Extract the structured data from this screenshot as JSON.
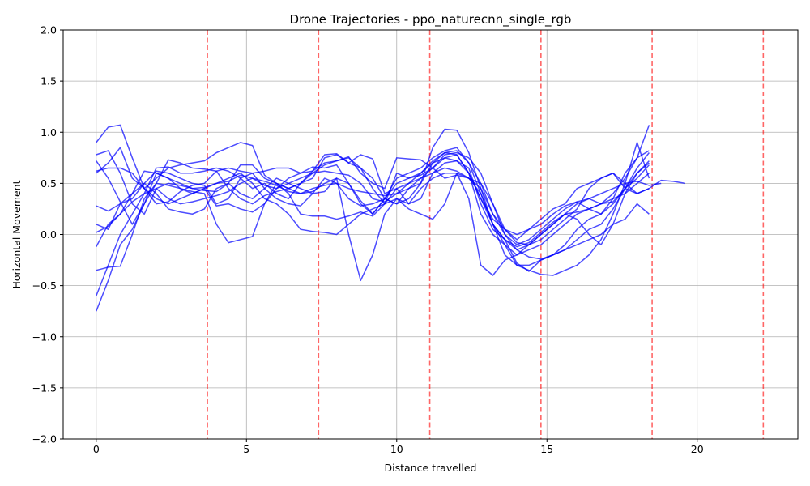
{
  "chart_data": {
    "type": "line",
    "title": "Drone Trajectories - ppo_naturecnn_single_rgb",
    "xlabel": "Distance travelled",
    "ylabel": "Horizontal Movement",
    "xlim": [
      -1.1,
      23.35
    ],
    "ylim": [
      -2.0,
      2.0
    ],
    "xticks": [
      0,
      5,
      10,
      15,
      20
    ],
    "xtick_labels": [
      "0",
      "5",
      "10",
      "15",
      "20"
    ],
    "yticks": [
      -2.0,
      -1.5,
      -1.0,
      -0.5,
      0.0,
      0.5,
      1.0,
      1.5,
      2.0
    ],
    "ytick_labels": [
      "−2.0",
      "−1.5",
      "−1.0",
      "−0.5",
      "0.0",
      "0.5",
      "1.0",
      "1.5",
      "2.0"
    ],
    "grid": true,
    "line_color": "#0000ff",
    "vline_color": "#ff0000",
    "vlines": [
      3.7,
      7.4,
      11.1,
      14.8,
      18.5,
      22.2
    ],
    "series": [
      {
        "x": [
          0,
          0.4,
          0.8,
          1.2,
          1.6,
          2.0,
          2.4,
          2.8,
          3.2,
          3.6,
          4.0,
          4.4,
          4.8,
          5.2,
          5.6,
          6.0,
          6.4,
          6.8,
          7.2,
          7.6,
          8.0,
          8.4,
          8.8,
          9.2,
          9.6,
          10.0,
          10.4,
          10.8,
          11.2,
          11.6,
          12.0,
          12.4,
          12.8,
          13.2,
          13.6,
          14.0,
          14.4,
          14.8,
          15.2,
          15.6,
          16.0,
          16.4,
          16.8,
          17.2,
          17.6,
          18.0,
          18.4
        ],
        "y": [
          0.9,
          1.05,
          1.07,
          0.75,
          0.45,
          0.55,
          0.65,
          0.68,
          0.7,
          0.72,
          0.8,
          0.85,
          0.9,
          0.87,
          0.58,
          0.5,
          0.45,
          0.5,
          0.55,
          0.75,
          0.78,
          0.7,
          0.65,
          0.55,
          0.35,
          0.3,
          0.45,
          0.5,
          0.85,
          1.03,
          1.02,
          0.8,
          0.45,
          0.1,
          -0.05,
          -0.15,
          -0.22,
          -0.24,
          -0.2,
          -0.1,
          0.05,
          0.15,
          0.2,
          0.35,
          0.6,
          0.75,
          0.82
        ]
      },
      {
        "x": [
          0,
          0.4,
          0.8,
          1.2,
          1.6,
          2.0,
          2.4,
          2.8,
          3.2,
          3.6,
          4.0,
          4.4,
          4.8,
          5.2,
          5.6,
          6.0,
          6.4,
          6.8,
          7.2,
          7.6,
          8.0,
          8.4,
          8.8,
          9.2,
          9.6,
          10.0,
          10.4,
          10.8,
          11.2,
          11.6,
          12.0,
          12.4,
          12.8,
          13.2,
          13.6,
          14.0,
          14.4,
          14.8,
          15.2,
          15.6,
          16.0,
          16.4,
          16.8,
          17.2,
          17.6,
          18.0,
          18.4
        ],
        "y": [
          -0.75,
          -0.45,
          -0.1,
          0.05,
          0.3,
          0.6,
          0.55,
          0.45,
          0.4,
          0.45,
          0.28,
          0.3,
          0.25,
          0.22,
          0.3,
          0.45,
          0.55,
          0.6,
          0.66,
          0.65,
          0.68,
          0.5,
          0.33,
          0.2,
          0.35,
          0.5,
          0.55,
          0.6,
          0.7,
          0.8,
          0.78,
          0.6,
          0.2,
          0.0,
          -0.1,
          -0.3,
          -0.3,
          -0.25,
          -0.2,
          -0.15,
          -0.05,
          0.05,
          0.1,
          0.25,
          0.45,
          0.65,
          0.8
        ]
      },
      {
        "x": [
          0,
          0.4,
          0.8,
          1.2,
          1.6,
          2.0,
          2.4,
          2.8,
          3.2,
          3.6,
          4.0,
          4.4,
          4.8,
          5.2,
          5.6,
          6.0,
          6.4,
          6.8,
          7.2,
          7.6,
          8.0,
          8.4,
          8.8,
          9.2,
          9.6,
          10.0,
          10.4,
          10.8,
          11.2,
          11.6,
          12.0,
          12.4,
          12.8,
          13.2,
          13.6,
          14.0,
          14.4,
          14.8,
          15.2,
          15.6,
          16.0,
          16.4,
          16.8,
          17.2,
          17.6,
          18.0,
          18.4
        ],
        "y": [
          0.6,
          0.7,
          0.85,
          0.55,
          0.45,
          0.35,
          0.3,
          0.35,
          0.4,
          0.45,
          0.5,
          0.55,
          0.6,
          0.5,
          0.35,
          0.3,
          0.2,
          0.05,
          0.03,
          0.02,
          0.0,
          0.1,
          0.2,
          0.25,
          0.3,
          0.35,
          0.25,
          0.2,
          0.15,
          0.3,
          0.6,
          0.55,
          0.4,
          0.1,
          -0.2,
          -0.3,
          -0.35,
          -0.39,
          -0.4,
          -0.35,
          -0.3,
          -0.2,
          -0.05,
          0.2,
          0.5,
          0.9,
          0.55
        ]
      },
      {
        "x": [
          0,
          0.4,
          0.8,
          1.2,
          1.6,
          2.0,
          2.4,
          2.8,
          3.2,
          3.6,
          4.0,
          4.4,
          4.8,
          5.2,
          5.6,
          6.0,
          6.4,
          6.8,
          7.2,
          7.6,
          8.0,
          8.4,
          8.8,
          9.2,
          9.6,
          10.0,
          10.4,
          10.8,
          11.2,
          11.6,
          12.0,
          12.4,
          12.8,
          13.2,
          13.6,
          14.0,
          14.4,
          14.8,
          15.2,
          15.6,
          16.0,
          16.4,
          16.8,
          17.2,
          17.6,
          18.0,
          18.4,
          18.8,
          19.2,
          19.6
        ],
        "y": [
          -0.35,
          -0.32,
          -0.31,
          0.0,
          0.35,
          0.5,
          0.48,
          0.45,
          0.42,
          0.4,
          0.1,
          -0.08,
          -0.05,
          -0.02,
          0.3,
          0.5,
          0.45,
          0.4,
          0.42,
          0.5,
          0.55,
          0.0,
          -0.45,
          -0.2,
          0.2,
          0.35,
          0.3,
          0.45,
          0.55,
          0.6,
          0.6,
          0.35,
          -0.3,
          -0.4,
          -0.25,
          -0.2,
          -0.1,
          0.0,
          0.1,
          0.2,
          0.3,
          0.35,
          0.4,
          0.45,
          0.5,
          0.4,
          0.45,
          0.53,
          0.52,
          0.5
        ]
      },
      {
        "x": [
          0,
          0.4,
          0.8,
          1.2,
          1.6,
          2.0,
          2.4,
          2.8,
          3.2,
          3.6,
          4.0,
          4.4,
          4.8,
          5.2,
          5.6,
          6.0,
          6.4,
          6.8,
          7.2,
          7.6,
          8.0,
          8.4,
          8.8,
          9.2,
          9.6,
          10.0,
          10.4,
          10.8,
          11.2,
          11.6,
          12.0,
          12.4,
          12.8,
          13.2,
          13.6,
          14.0,
          14.4,
          14.8,
          15.2,
          15.6,
          16.0,
          16.4,
          16.8,
          17.2,
          17.6,
          18.0,
          18.4
        ],
        "y": [
          0.28,
          0.23,
          0.3,
          0.35,
          0.5,
          0.62,
          0.6,
          0.55,
          0.5,
          0.48,
          0.3,
          0.35,
          0.55,
          0.6,
          0.45,
          0.35,
          0.3,
          0.28,
          0.4,
          0.55,
          0.5,
          0.35,
          0.28,
          0.3,
          0.35,
          0.3,
          0.35,
          0.5,
          0.7,
          0.75,
          0.72,
          0.6,
          0.35,
          0.15,
          0.05,
          0.0,
          0.05,
          0.15,
          0.25,
          0.3,
          0.45,
          0.5,
          0.55,
          0.6,
          0.45,
          0.4,
          0.45
        ]
      },
      {
        "x": [
          0,
          0.4,
          0.8,
          1.2,
          1.6,
          2.0,
          2.4,
          2.8,
          3.2,
          3.6,
          4.0,
          4.4,
          4.8,
          5.2,
          5.6,
          6.0,
          6.4,
          6.8,
          7.2,
          7.6,
          8.0,
          8.4,
          8.8,
          9.2,
          9.6,
          10.0,
          10.4,
          10.8,
          11.2,
          11.6,
          12.0,
          12.4,
          12.8,
          13.2,
          13.6,
          14.0,
          14.4,
          14.8,
          15.2,
          15.6,
          16.0,
          16.4,
          16.8,
          17.2,
          17.6,
          18.0,
          18.4
        ],
        "y": [
          0.1,
          0.05,
          0.3,
          0.4,
          0.5,
          0.4,
          0.25,
          0.22,
          0.2,
          0.25,
          0.45,
          0.5,
          0.4,
          0.35,
          0.45,
          0.55,
          0.5,
          0.45,
          0.4,
          0.42,
          0.55,
          0.5,
          0.3,
          0.2,
          0.35,
          0.55,
          0.6,
          0.65,
          0.75,
          0.82,
          0.85,
          0.7,
          0.4,
          0.1,
          -0.1,
          -0.2,
          -0.15,
          -0.1,
          0.0,
          0.1,
          0.2,
          0.25,
          0.3,
          0.35,
          0.4,
          0.5,
          0.6
        ]
      },
      {
        "x": [
          0,
          0.4,
          0.8,
          1.2,
          1.6,
          2.0,
          2.4,
          2.8,
          3.2,
          3.6,
          4.0,
          4.4,
          4.8,
          5.2,
          5.6,
          6.0,
          6.4,
          6.8,
          7.2,
          7.6,
          8.0,
          8.4,
          8.8,
          9.2,
          9.6,
          10.0,
          10.4,
          10.8,
          11.2,
          11.6,
          12.0,
          12.4,
          12.8,
          13.2,
          13.6,
          14.0,
          14.4,
          14.8,
          15.2,
          15.6,
          16.0,
          16.4,
          16.8,
          17.2,
          17.6,
          18.0,
          18.4
        ],
        "y": [
          -0.6,
          -0.3,
          0.0,
          0.2,
          0.4,
          0.65,
          0.66,
          0.6,
          0.6,
          0.62,
          0.65,
          0.62,
          0.55,
          0.45,
          0.5,
          0.4,
          0.35,
          0.5,
          0.6,
          0.68,
          0.72,
          0.75,
          0.65,
          0.45,
          0.3,
          0.6,
          0.55,
          0.58,
          0.65,
          0.78,
          0.8,
          0.75,
          0.6,
          0.3,
          0.0,
          -0.15,
          -0.1,
          0.0,
          0.1,
          0.2,
          0.15,
          0.0,
          -0.1,
          0.1,
          0.4,
          0.6,
          0.7
        ]
      },
      {
        "x": [
          0,
          0.4,
          0.8,
          1.2,
          1.6,
          2.0,
          2.4,
          2.8,
          3.2,
          3.6,
          4.0,
          4.4,
          4.8,
          5.2,
          5.6,
          6.0,
          6.4,
          6.8,
          7.2,
          7.6,
          8.0,
          8.4,
          8.8,
          9.2,
          9.6,
          10.0,
          10.4,
          10.8,
          11.2,
          11.6,
          12.0,
          12.4,
          12.8,
          13.2,
          13.6,
          14.0,
          14.4,
          14.8,
          15.2,
          15.6,
          16.0,
          16.4,
          16.8,
          17.2,
          17.6,
          18.0,
          18.4
        ],
        "y": [
          0.78,
          0.82,
          0.6,
          0.3,
          0.2,
          0.45,
          0.5,
          0.48,
          0.45,
          0.43,
          0.42,
          0.5,
          0.68,
          0.68,
          0.55,
          0.5,
          0.4,
          0.2,
          0.18,
          0.18,
          0.15,
          0.18,
          0.22,
          0.18,
          0.3,
          0.45,
          0.5,
          0.55,
          0.6,
          0.7,
          0.72,
          0.65,
          0.3,
          0.05,
          -0.05,
          -0.12,
          -0.08,
          0.02,
          0.12,
          0.2,
          0.22,
          0.25,
          0.3,
          0.4,
          0.55,
          0.75,
          1.07
        ]
      },
      {
        "x": [
          0,
          0.4,
          0.8,
          1.2,
          1.6,
          2.0,
          2.4,
          2.8,
          3.2,
          3.6,
          4.0,
          4.4,
          4.8,
          5.2,
          5.6,
          6.0,
          6.4,
          6.8,
          7.2,
          7.6,
          8.0,
          8.4,
          8.8,
          9.2,
          9.6,
          10.0,
          10.4,
          10.8,
          11.2,
          11.6,
          12.0,
          12.4,
          12.8,
          13.2,
          13.6,
          14.0,
          14.4,
          14.8,
          15.2,
          15.6,
          16.0,
          16.4,
          16.8,
          17.2,
          17.6,
          18.0,
          18.4
        ],
        "y": [
          -0.12,
          0.1,
          0.2,
          0.4,
          0.62,
          0.6,
          0.55,
          0.5,
          0.45,
          0.46,
          0.5,
          0.52,
          0.58,
          0.55,
          0.48,
          0.45,
          0.5,
          0.55,
          0.6,
          0.62,
          0.6,
          0.58,
          0.5,
          0.35,
          0.32,
          0.4,
          0.45,
          0.55,
          0.65,
          0.75,
          0.78,
          0.6,
          0.35,
          0.1,
          -0.05,
          -0.28,
          -0.36,
          -0.25,
          -0.2,
          -0.15,
          -0.1,
          -0.05,
          0.0,
          0.1,
          0.15,
          0.3,
          0.2
        ]
      },
      {
        "x": [
          0,
          0.4,
          0.8,
          1.2,
          1.6,
          2.0,
          2.4,
          2.8,
          3.2,
          3.6,
          4.0,
          4.4,
          4.8,
          5.2,
          5.6,
          6.0,
          6.4,
          6.8,
          7.2,
          7.6,
          8.0,
          8.4,
          8.8,
          9.2,
          9.6,
          10.0,
          10.4,
          10.8,
          11.2,
          11.6,
          12.0,
          12.4,
          12.8,
          13.2,
          13.6,
          14.0,
          14.4,
          14.8,
          15.2,
          15.6,
          16.0,
          16.4,
          16.8,
          17.2,
          17.6,
          18.0,
          18.4,
          18.8
        ],
        "y": [
          0.72,
          0.55,
          0.32,
          0.1,
          0.3,
          0.5,
          0.73,
          0.7,
          0.65,
          0.64,
          0.62,
          0.45,
          0.35,
          0.3,
          0.38,
          0.42,
          0.45,
          0.5,
          0.62,
          0.7,
          0.72,
          0.76,
          0.6,
          0.5,
          0.45,
          0.75,
          0.74,
          0.73,
          0.65,
          0.55,
          0.58,
          0.55,
          0.45,
          0.2,
          0.05,
          -0.08,
          -0.1,
          -0.05,
          0.05,
          0.15,
          0.25,
          0.45,
          0.55,
          0.6,
          0.5,
          0.52,
          0.48,
          0.5
        ]
      },
      {
        "x": [
          0,
          0.4,
          0.8,
          1.2,
          1.6,
          2.0,
          2.4,
          2.8,
          3.2,
          3.6,
          4.0,
          4.4,
          4.8,
          5.2,
          5.6,
          6.0,
          6.4,
          6.8,
          7.2,
          7.6,
          8.0,
          8.4,
          8.8,
          9.2,
          9.6,
          10.0,
          10.4,
          10.8,
          11.2,
          11.6,
          12.0,
          12.4,
          12.8,
          13.2,
          13.6,
          14.0,
          14.4,
          14.8,
          15.2,
          15.6,
          16.0,
          16.4,
          16.8,
          17.2,
          17.6,
          18.0,
          18.4
        ],
        "y": [
          0.02,
          0.08,
          0.2,
          0.32,
          0.4,
          0.45,
          0.35,
          0.3,
          0.32,
          0.35,
          0.38,
          0.42,
          0.5,
          0.55,
          0.52,
          0.48,
          0.42,
          0.4,
          0.45,
          0.48,
          0.5,
          0.45,
          0.42,
          0.4,
          0.38,
          0.4,
          0.5,
          0.6,
          0.72,
          0.8,
          0.82,
          0.7,
          0.5,
          0.2,
          0.0,
          -0.1,
          -0.05,
          0.05,
          0.15,
          0.25,
          0.32,
          0.35,
          0.3,
          0.32,
          0.45,
          0.6,
          0.72
        ]
      },
      {
        "x": [
          0,
          0.4,
          0.8,
          1.2,
          1.6,
          2.0,
          2.4,
          2.8,
          3.2,
          3.6,
          4.0,
          4.4,
          4.8,
          5.2,
          5.6,
          6.0,
          6.4,
          6.8,
          7.2,
          7.6,
          8.0,
          8.4,
          8.8,
          9.2,
          9.6,
          10.0,
          10.4,
          10.8,
          11.2,
          11.6,
          12.0,
          12.4,
          12.8,
          13.2,
          13.6,
          14.0,
          14.4,
          14.8,
          15.2,
          15.6,
          16.0,
          16.4,
          16.8,
          17.2,
          17.6,
          18.0,
          18.4
        ],
        "y": [
          0.62,
          0.65,
          0.65,
          0.6,
          0.45,
          0.3,
          0.32,
          0.42,
          0.48,
          0.5,
          0.62,
          0.65,
          0.62,
          0.6,
          0.62,
          0.65,
          0.65,
          0.6,
          0.62,
          0.78,
          0.79,
          0.7,
          0.78,
          0.74,
          0.4,
          0.45,
          0.3,
          0.35,
          0.6,
          0.65,
          0.62,
          0.55,
          0.5,
          0.3,
          0.05,
          -0.05,
          0.05,
          0.1,
          0.2,
          0.28,
          0.32,
          0.25,
          0.2,
          0.3,
          0.45,
          0.55,
          0.68
        ]
      }
    ]
  }
}
